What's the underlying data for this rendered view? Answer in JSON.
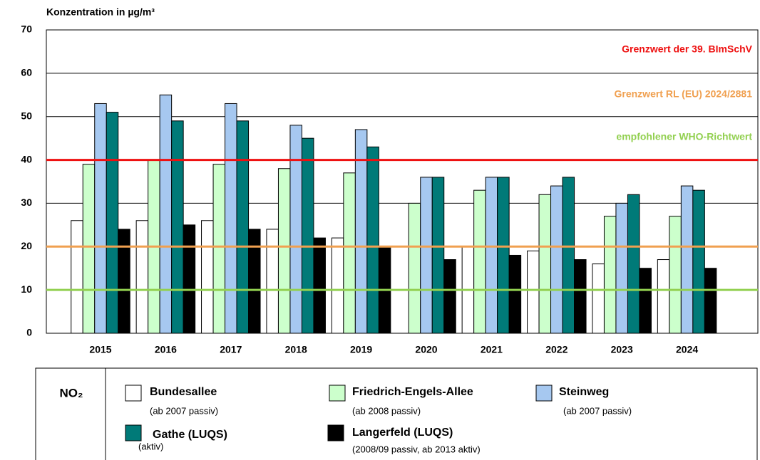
{
  "chart_data": {
    "type": "bar",
    "y_axis_label": "Konzentration in µg/m³",
    "categories": [
      "2015",
      "2016",
      "2017",
      "2018",
      "2019",
      "2020",
      "2021",
      "2022",
      "2023",
      "2024"
    ],
    "series": [
      {
        "name": "Bundesallee",
        "note": "(ab 2007 passiv)",
        "color": "#ffffff",
        "values": [
          26,
          26,
          26,
          24,
          22,
          null,
          20,
          19,
          16,
          17
        ]
      },
      {
        "name": "Friedrich-Engels-Allee",
        "note": "(ab 2008 passiv)",
        "color": "#ccffcc",
        "values": [
          39,
          40,
          39,
          38,
          37,
          30,
          33,
          32,
          27,
          27
        ]
      },
      {
        "name": "Steinweg",
        "note": "(ab 2007 passiv)",
        "color": "#a6c8f0",
        "values": [
          53,
          55,
          53,
          48,
          47,
          36,
          36,
          34,
          30,
          34
        ]
      },
      {
        "name": "Gathe (LUQS)",
        "note": "(aktiv)",
        "color": "#007a78",
        "values": [
          51,
          49,
          49,
          45,
          43,
          36,
          36,
          36,
          32,
          33
        ]
      },
      {
        "name": "Langerfeld (LUQS)",
        "note": "(2008/09 passiv, ab 2013 aktiv)",
        "color": "#000000",
        "values": [
          24,
          25,
          24,
          22,
          20,
          17,
          18,
          17,
          15,
          15
        ]
      }
    ],
    "reference_lines": [
      {
        "label": "Grenzwert der 39. BImSchV",
        "value": 40,
        "color": "#ee1111"
      },
      {
        "label": "Grenzwert RL (EU) 2024/2881",
        "value": 20,
        "color": "#f0a050"
      },
      {
        "label": "empfohlener WHO-Richtwert",
        "value": 10,
        "color": "#92d050"
      }
    ],
    "legend_title": "NO₂",
    "ylim": [
      0,
      70
    ],
    "yticks": [
      0,
      10,
      20,
      30,
      40,
      50,
      60,
      70
    ],
    "grid": true
  }
}
